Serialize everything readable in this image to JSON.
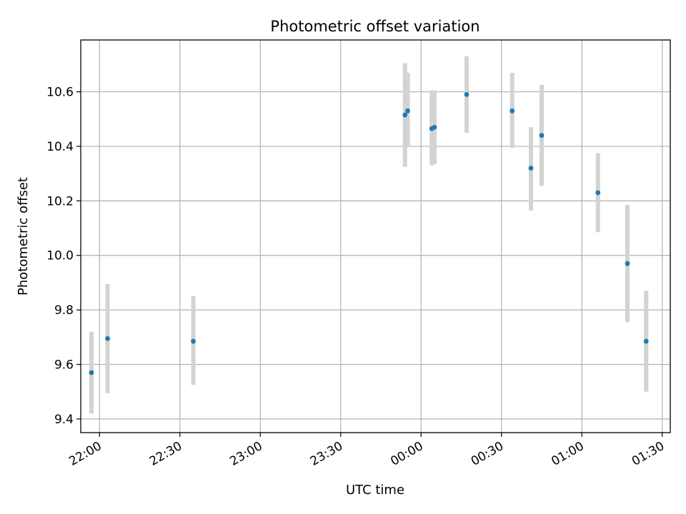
{
  "chart_data": {
    "type": "scatter",
    "title": "Photometric offset variation",
    "xlabel": "UTC time",
    "ylabel": "Photometric offset",
    "grid": true,
    "xlim": [
      "21:53",
      "01:33"
    ],
    "ylim": [
      9.35,
      10.79
    ],
    "x_ticks": [
      "22:00",
      "22:30",
      "23:00",
      "23:30",
      "00:00",
      "00:30",
      "01:00",
      "01:30"
    ],
    "y_ticks": [
      9.4,
      9.6,
      9.8,
      10.0,
      10.2,
      10.4,
      10.6
    ],
    "colors": {
      "point": "#1f77b4",
      "errorbar": "#d3d3d3",
      "grid": "#b0b0b0"
    },
    "points": [
      {
        "x": "21:57",
        "y": 9.57,
        "err_low": 9.42,
        "err_high": 9.72
      },
      {
        "x": "22:03",
        "y": 9.695,
        "err_low": 9.495,
        "err_high": 9.895
      },
      {
        "x": "22:35",
        "y": 9.685,
        "err_low": 9.525,
        "err_high": 9.85
      },
      {
        "x": "23:54",
        "y": 10.515,
        "err_low": 10.325,
        "err_high": 10.705
      },
      {
        "x": "23:55",
        "y": 10.53,
        "err_low": 10.4,
        "err_high": 10.67
      },
      {
        "x": "00:04",
        "y": 10.465,
        "err_low": 10.33,
        "err_high": 10.605
      },
      {
        "x": "00:05",
        "y": 10.47,
        "err_low": 10.335,
        "err_high": 10.605
      },
      {
        "x": "00:17",
        "y": 10.59,
        "err_low": 10.45,
        "err_high": 10.73
      },
      {
        "x": "00:34",
        "y": 10.53,
        "err_low": 10.395,
        "err_high": 10.67
      },
      {
        "x": "00:41",
        "y": 10.32,
        "err_low": 10.165,
        "err_high": 10.47
      },
      {
        "x": "00:45",
        "y": 10.44,
        "err_low": 10.255,
        "err_high": 10.625
      },
      {
        "x": "01:06",
        "y": 10.23,
        "err_low": 10.085,
        "err_high": 10.375
      },
      {
        "x": "01:17",
        "y": 9.97,
        "err_low": 9.755,
        "err_high": 10.185
      },
      {
        "x": "01:24",
        "y": 9.685,
        "err_low": 9.5,
        "err_high": 9.87
      }
    ]
  }
}
